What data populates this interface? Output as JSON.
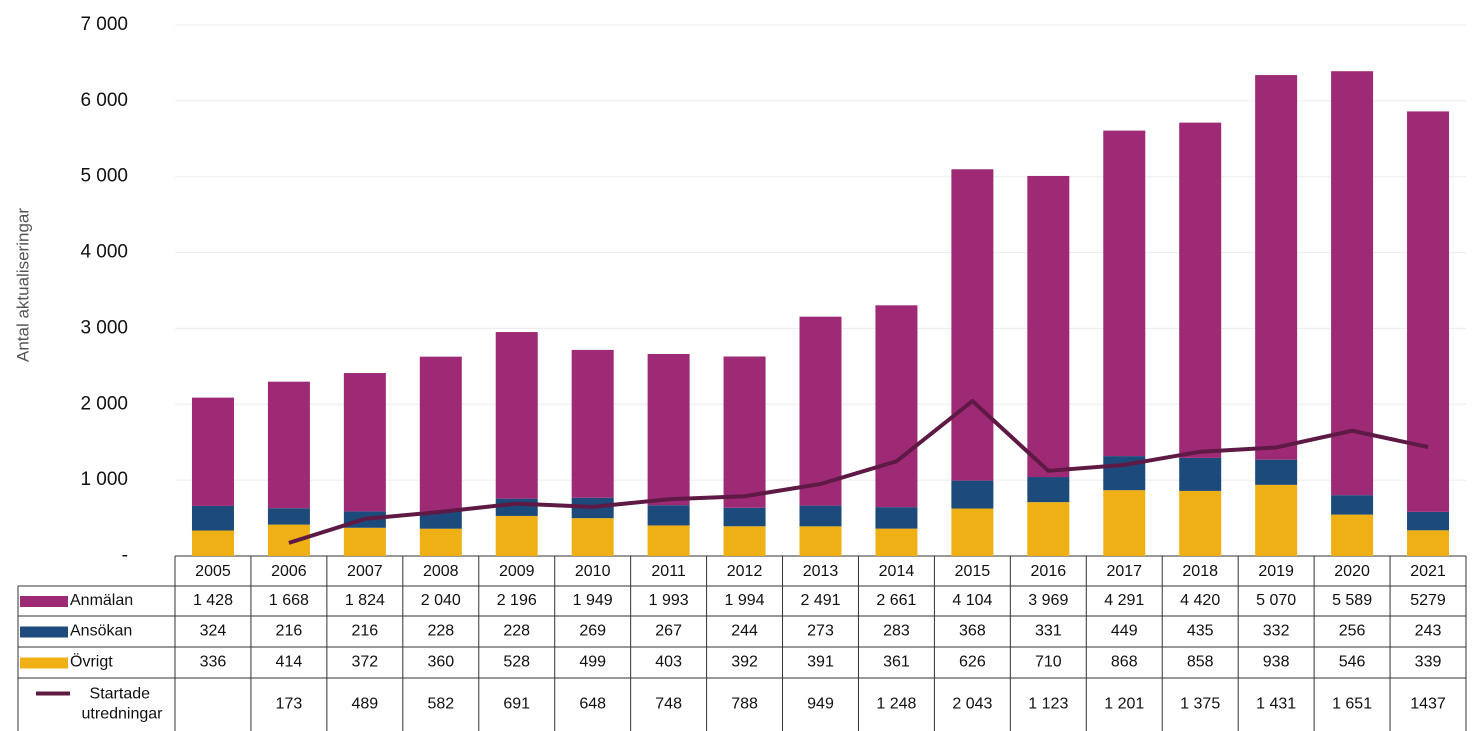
{
  "chart_data": {
    "type": "stacked-bar-line-table",
    "y_axis_label": "Antal aktualiseringar",
    "categories": [
      "2005",
      "2006",
      "2007",
      "2008",
      "2009",
      "2010",
      "2011",
      "2012",
      "2013",
      "2014",
      "2015",
      "2016",
      "2017",
      "2018",
      "2019",
      "2020",
      "2021"
    ],
    "ylim": [
      0,
      7000
    ],
    "yticks": [
      {
        "value": 0,
        "label": "-"
      },
      {
        "value": 1000,
        "label": "1 000"
      },
      {
        "value": 2000,
        "label": "2 000"
      },
      {
        "value": 3000,
        "label": "3 000"
      },
      {
        "value": 4000,
        "label": "4 000"
      },
      {
        "value": 5000,
        "label": "5 000"
      },
      {
        "value": 6000,
        "label": "6 000"
      },
      {
        "value": 7000,
        "label": "7 000"
      }
    ],
    "grid": true,
    "series": [
      {
        "name": "Anmälan",
        "color": "#9e2a76",
        "kind": "bar",
        "values": [
          1428,
          1668,
          1824,
          2040,
          2196,
          1949,
          1993,
          1994,
          2491,
          2661,
          4104,
          3969,
          4291,
          4420,
          5070,
          5589,
          5279
        ],
        "value_labels": [
          "1 428",
          "1 668",
          "1 824",
          "2 040",
          "2 196",
          "1 949",
          "1 993",
          "1 994",
          "2 491",
          "2 661",
          "4 104",
          "3 969",
          "4 291",
          "4 420",
          "5 070",
          "5 589",
          "5279"
        ]
      },
      {
        "name": "Ansökan",
        "color": "#1c4a7a",
        "kind": "bar",
        "values": [
          324,
          216,
          216,
          228,
          228,
          269,
          267,
          244,
          273,
          283,
          368,
          331,
          449,
          435,
          332,
          256,
          243
        ]
      },
      {
        "name": "Övrigt",
        "color": "#efb016",
        "kind": "bar",
        "values": [
          336,
          414,
          372,
          360,
          528,
          499,
          403,
          392,
          391,
          361,
          626,
          710,
          868,
          858,
          938,
          546,
          339
        ]
      },
      {
        "name": "Startade utredningar",
        "color": "#5e1a45",
        "kind": "line",
        "values": [
          null,
          173,
          489,
          582,
          691,
          648,
          748,
          788,
          949,
          1248,
          2043,
          1123,
          1201,
          1375,
          1431,
          1651,
          1437
        ],
        "value_labels": [
          null,
          "173",
          "489",
          "582",
          "691",
          "648",
          "748",
          "788",
          "949",
          "1 248",
          "2 043",
          "1 123",
          "1 201",
          "1 375",
          "1 431",
          "1 651",
          "1437"
        ]
      }
    ]
  }
}
